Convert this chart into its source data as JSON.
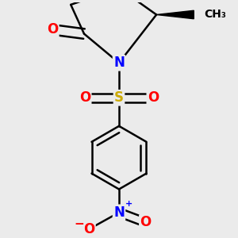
{
  "background_color": "#ebebeb",
  "bond_color": "#000000",
  "bond_width": 1.8,
  "atom_colors": {
    "O": "#ff0000",
    "N": "#0000ff",
    "S": "#ccaa00",
    "C": "#000000"
  },
  "font_size_atoms": 11,
  "fig_width": 3.0,
  "fig_height": 3.0,
  "dpi": 100,
  "xlim": [
    -1.3,
    1.3
  ],
  "ylim": [
    -1.35,
    1.35
  ]
}
